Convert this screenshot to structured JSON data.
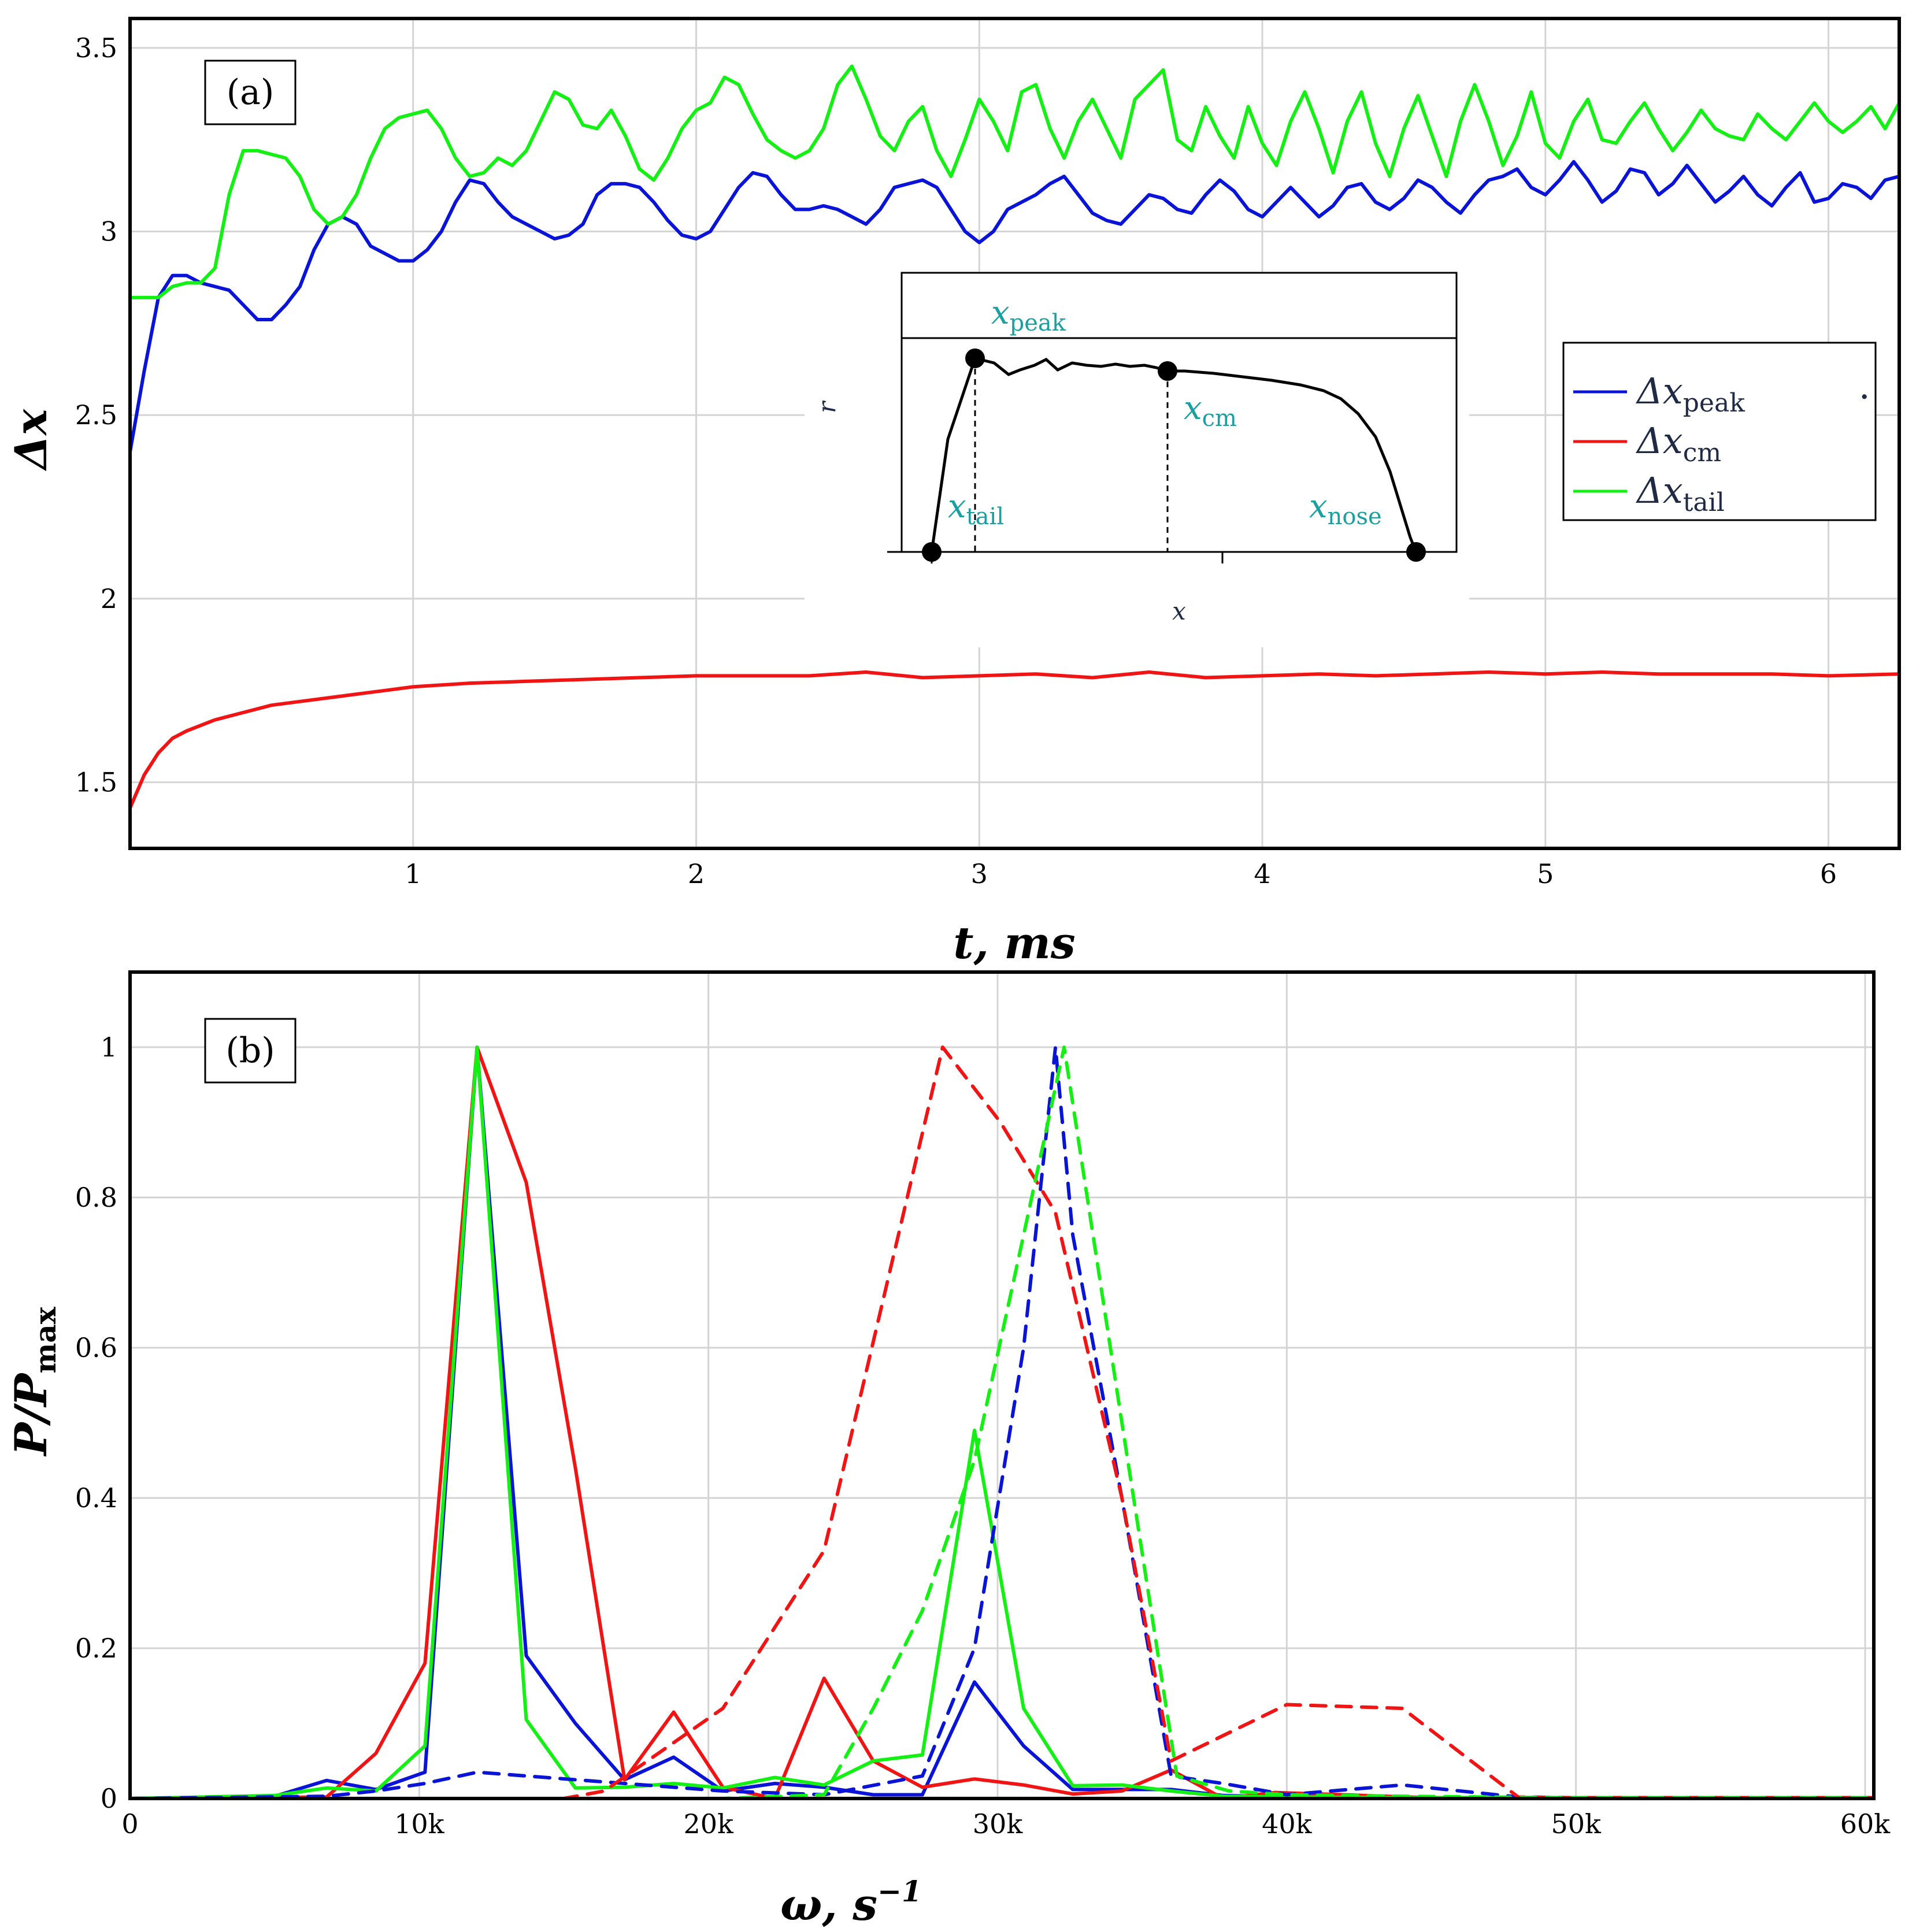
{
  "colors": {
    "peak": "#0a14d6",
    "cm": "#f01414",
    "tail": "#14f014",
    "inset_label": "#1aa0a0"
  },
  "panel_a": {
    "tag": "(a)",
    "xlabel": "t, ms",
    "ylabel": "Δx",
    "x_ticks": [
      "1",
      "2",
      "3",
      "4",
      "5",
      "6"
    ],
    "y_ticks": [
      "1.5",
      "2",
      "2.5",
      "3",
      "3.5"
    ],
    "legend": [
      {
        "symbol": "Δx",
        "sub": "peak",
        "color": "#0a14d6"
      },
      {
        "symbol": "Δx",
        "sub": "cm",
        "color": "#f01414"
      },
      {
        "symbol": "Δx",
        "sub": "tail",
        "color": "#14f014"
      }
    ],
    "legend_dot": ".",
    "inset": {
      "x_axis": "x",
      "y_axis": "r",
      "labels": [
        {
          "sym": "x",
          "sub": "peak"
        },
        {
          "sym": "x",
          "sub": "cm"
        },
        {
          "sym": "x",
          "sub": "tail"
        },
        {
          "sym": "x",
          "sub": "nose"
        }
      ]
    }
  },
  "panel_b": {
    "tag": "(b)",
    "xlabel": "ω,   s",
    "xlabel_sup": "−1",
    "ylabel": "P/P",
    "ylabel_sub": "max",
    "x_ticks": [
      "0",
      "10k",
      "20k",
      "30k",
      "40k",
      "50k",
      "60k"
    ],
    "y_ticks": [
      "0",
      "0.2",
      "0.4",
      "0.6",
      "0.8",
      "1"
    ]
  },
  "chart_data": [
    {
      "type": "line",
      "title": "(a)",
      "xlabel": "t, ms",
      "ylabel": "Δx",
      "xlim": [
        0,
        6.25
      ],
      "ylim": [
        1.32,
        3.58
      ],
      "series": [
        {
          "name": "Δx_peak",
          "color": "#0a14d6",
          "x": [
            0,
            0.05,
            0.1,
            0.15,
            0.2,
            0.25,
            0.3,
            0.35,
            0.4,
            0.45,
            0.5,
            0.55,
            0.6,
            0.65,
            0.7,
            0.75,
            0.8,
            0.85,
            0.9,
            0.95,
            1.0,
            1.05,
            1.1,
            1.15,
            1.2,
            1.25,
            1.3,
            1.35,
            1.4,
            1.45,
            1.5,
            1.55,
            1.6,
            1.65,
            1.7,
            1.75,
            1.8,
            1.85,
            1.9,
            1.95,
            2.0,
            2.05,
            2.1,
            2.15,
            2.2,
            2.25,
            2.3,
            2.35,
            2.4,
            2.45,
            2.5,
            2.55,
            2.6,
            2.65,
            2.7,
            2.75,
            2.8,
            2.85,
            2.9,
            2.95,
            3.0,
            3.05,
            3.1,
            3.15,
            3.2,
            3.25,
            3.3,
            3.35,
            3.4,
            3.45,
            3.5,
            3.55,
            3.6,
            3.65,
            3.7,
            3.75,
            3.8,
            3.85,
            3.9,
            3.95,
            4.0,
            4.05,
            4.1,
            4.15,
            4.2,
            4.25,
            4.3,
            4.35,
            4.4,
            4.45,
            4.5,
            4.55,
            4.6,
            4.65,
            4.7,
            4.75,
            4.8,
            4.85,
            4.9,
            4.95,
            5.0,
            5.05,
            5.1,
            5.15,
            5.2,
            5.25,
            5.3,
            5.35,
            5.4,
            5.45,
            5.5,
            5.55,
            5.6,
            5.65,
            5.7,
            5.75,
            5.8,
            5.85,
            5.9,
            5.95,
            6.0,
            6.05,
            6.1,
            6.15,
            6.2,
            6.25
          ],
          "y": [
            2.4,
            2.62,
            2.82,
            2.88,
            2.88,
            2.86,
            2.85,
            2.84,
            2.8,
            2.76,
            2.76,
            2.8,
            2.85,
            2.95,
            3.02,
            3.04,
            3.02,
            2.96,
            2.94,
            2.92,
            2.92,
            2.95,
            3.0,
            3.08,
            3.14,
            3.13,
            3.08,
            3.04,
            3.02,
            3.0,
            2.98,
            2.99,
            3.02,
            3.1,
            3.13,
            3.13,
            3.12,
            3.08,
            3.03,
            2.99,
            2.98,
            3.0,
            3.06,
            3.12,
            3.16,
            3.15,
            3.1,
            3.06,
            3.06,
            3.07,
            3.06,
            3.04,
            3.02,
            3.06,
            3.12,
            3.13,
            3.14,
            3.12,
            3.06,
            3.0,
            2.97,
            3.0,
            3.06,
            3.08,
            3.1,
            3.13,
            3.15,
            3.1,
            3.05,
            3.03,
            3.02,
            3.06,
            3.1,
            3.09,
            3.06,
            3.05,
            3.1,
            3.14,
            3.11,
            3.06,
            3.04,
            3.08,
            3.12,
            3.08,
            3.04,
            3.07,
            3.12,
            3.13,
            3.08,
            3.06,
            3.09,
            3.14,
            3.12,
            3.08,
            3.05,
            3.1,
            3.14,
            3.15,
            3.17,
            3.12,
            3.1,
            3.14,
            3.19,
            3.14,
            3.08,
            3.11,
            3.17,
            3.16,
            3.1,
            3.13,
            3.18,
            3.13,
            3.08,
            3.11,
            3.15,
            3.1,
            3.07,
            3.12,
            3.16,
            3.08,
            3.09,
            3.13,
            3.12,
            3.09,
            3.14,
            3.15
          ]
        },
        {
          "name": "Δx_cm",
          "color": "#f01414",
          "x": [
            0,
            0.05,
            0.1,
            0.15,
            0.2,
            0.3,
            0.4,
            0.5,
            0.6,
            0.7,
            0.8,
            0.9,
            1.0,
            1.2,
            1.4,
            1.6,
            1.8,
            2.0,
            2.2,
            2.4,
            2.6,
            2.8,
            3.0,
            3.2,
            3.4,
            3.6,
            3.8,
            4.0,
            4.2,
            4.4,
            4.6,
            4.8,
            5.0,
            5.2,
            5.4,
            5.6,
            5.8,
            6.0,
            6.25
          ],
          "y": [
            1.43,
            1.52,
            1.58,
            1.62,
            1.64,
            1.67,
            1.69,
            1.71,
            1.72,
            1.73,
            1.74,
            1.75,
            1.76,
            1.77,
            1.775,
            1.78,
            1.785,
            1.79,
            1.79,
            1.79,
            1.8,
            1.785,
            1.79,
            1.795,
            1.785,
            1.8,
            1.785,
            1.79,
            1.795,
            1.79,
            1.795,
            1.8,
            1.795,
            1.8,
            1.795,
            1.795,
            1.795,
            1.79,
            1.795
          ]
        },
        {
          "name": "Δx_tail",
          "color": "#14f014",
          "x": [
            0,
            0.05,
            0.1,
            0.15,
            0.2,
            0.25,
            0.3,
            0.35,
            0.4,
            0.45,
            0.5,
            0.55,
            0.6,
            0.65,
            0.7,
            0.75,
            0.8,
            0.85,
            0.9,
            0.95,
            1.0,
            1.05,
            1.1,
            1.15,
            1.2,
            1.25,
            1.3,
            1.35,
            1.4,
            1.45,
            1.5,
            1.55,
            1.6,
            1.65,
            1.7,
            1.75,
            1.8,
            1.85,
            1.9,
            1.95,
            2.0,
            2.05,
            2.1,
            2.15,
            2.2,
            2.25,
            2.3,
            2.35,
            2.4,
            2.45,
            2.5,
            2.55,
            2.6,
            2.65,
            2.7,
            2.75,
            2.8,
            2.85,
            2.9,
            2.95,
            3.0,
            3.05,
            3.1,
            3.15,
            3.2,
            3.25,
            3.3,
            3.35,
            3.4,
            3.45,
            3.5,
            3.55,
            3.6,
            3.65,
            3.7,
            3.75,
            3.8,
            3.85,
            3.9,
            3.95,
            4.0,
            4.05,
            4.1,
            4.15,
            4.2,
            4.25,
            4.3,
            4.35,
            4.4,
            4.45,
            4.5,
            4.55,
            4.6,
            4.65,
            4.7,
            4.75,
            4.8,
            4.85,
            4.9,
            4.95,
            5.0,
            5.05,
            5.1,
            5.15,
            5.2,
            5.25,
            5.3,
            5.35,
            5.4,
            5.45,
            5.5,
            5.55,
            5.6,
            5.65,
            5.7,
            5.75,
            5.8,
            5.85,
            5.9,
            5.95,
            6.0,
            6.05,
            6.1,
            6.15,
            6.2,
            6.25
          ],
          "y": [
            2.82,
            2.82,
            2.82,
            2.85,
            2.86,
            2.86,
            2.9,
            3.1,
            3.22,
            3.22,
            3.21,
            3.2,
            3.15,
            3.06,
            3.02,
            3.04,
            3.1,
            3.2,
            3.28,
            3.31,
            3.32,
            3.33,
            3.28,
            3.2,
            3.15,
            3.16,
            3.2,
            3.18,
            3.22,
            3.3,
            3.38,
            3.36,
            3.29,
            3.28,
            3.33,
            3.26,
            3.17,
            3.14,
            3.2,
            3.28,
            3.33,
            3.35,
            3.42,
            3.4,
            3.32,
            3.25,
            3.22,
            3.2,
            3.22,
            3.28,
            3.4,
            3.45,
            3.36,
            3.26,
            3.22,
            3.3,
            3.34,
            3.22,
            3.15,
            3.25,
            3.36,
            3.3,
            3.22,
            3.38,
            3.4,
            3.28,
            3.2,
            3.3,
            3.36,
            3.28,
            3.2,
            3.36,
            3.4,
            3.44,
            3.25,
            3.22,
            3.34,
            3.26,
            3.2,
            3.34,
            3.24,
            3.18,
            3.3,
            3.38,
            3.28,
            3.16,
            3.3,
            3.38,
            3.24,
            3.15,
            3.28,
            3.37,
            3.26,
            3.15,
            3.3,
            3.4,
            3.3,
            3.18,
            3.26,
            3.38,
            3.24,
            3.2,
            3.3,
            3.36,
            3.25,
            3.24,
            3.3,
            3.35,
            3.28,
            3.22,
            3.27,
            3.33,
            3.28,
            3.26,
            3.25,
            3.32,
            3.28,
            3.25,
            3.3,
            3.35,
            3.3,
            3.27,
            3.3,
            3.34,
            3.28,
            3.35
          ]
        }
      ]
    },
    {
      "type": "line",
      "title": "(b)",
      "xlabel": "ω, s^-1",
      "ylabel": "P/P_max",
      "xlim": [
        0,
        60300
      ],
      "ylim": [
        0,
        1.1
      ],
      "series": [
        {
          "name": "peak (solid)",
          "color": "#0a14d6",
          "dash": false,
          "x": [
            0,
            5000,
            6800,
            8500,
            10200,
            12000,
            13700,
            15400,
            17100,
            18800,
            20500,
            22300,
            24000,
            25700,
            27400,
            29200,
            30900,
            32600,
            34300,
            36000,
            37800,
            40000,
            45000,
            50000,
            60300
          ],
          "y": [
            0,
            0.003,
            0.024,
            0.012,
            0.035,
            1.0,
            0.19,
            0.1,
            0.025,
            0.055,
            0.01,
            0.02,
            0.015,
            0.005,
            0.005,
            0.155,
            0.07,
            0.012,
            0.012,
            0.012,
            0.004,
            0.002,
            0.001,
            0.001,
            0.001
          ]
        },
        {
          "name": "cm (solid)",
          "color": "#f01414",
          "dash": false,
          "x": [
            0,
            6800,
            8500,
            10200,
            12000,
            13700,
            15400,
            17100,
            18800,
            20500,
            22300,
            24000,
            25700,
            27400,
            29200,
            30900,
            32600,
            34300,
            36000,
            37800,
            39600,
            45000,
            50000,
            60300
          ],
          "y": [
            0,
            0.002,
            0.06,
            0.18,
            1.0,
            0.82,
            0.44,
            0.025,
            0.115,
            0.015,
            0.0,
            0.16,
            0.05,
            0.015,
            0.026,
            0.018,
            0.006,
            0.01,
            0.038,
            0.0,
            0.008,
            0.001,
            0.001,
            0.001
          ]
        },
        {
          "name": "tail (solid)",
          "color": "#14f014",
          "dash": false,
          "x": [
            0,
            5000,
            6800,
            8500,
            10200,
            12000,
            13700,
            15400,
            17100,
            18800,
            20500,
            22300,
            24000,
            25700,
            27400,
            29200,
            30900,
            32600,
            34300,
            36000,
            37800,
            40000,
            45000,
            50000,
            60300
          ],
          "y": [
            0,
            0.004,
            0.014,
            0.01,
            0.07,
            1.0,
            0.105,
            0.014,
            0.015,
            0.02,
            0.014,
            0.028,
            0.018,
            0.05,
            0.058,
            0.49,
            0.12,
            0.017,
            0.018,
            0.01,
            0.003,
            0.002,
            0.001,
            0.001,
            0.001
          ]
        },
        {
          "name": "peak (dashed)",
          "color": "#0a14d6",
          "dash": true,
          "x": [
            0,
            6800,
            8500,
            10200,
            12000,
            13700,
            17100,
            20500,
            24000,
            27400,
            29200,
            30900,
            32000,
            32600,
            34300,
            36000,
            37800,
            40000,
            44000,
            48000,
            50000,
            60300
          ],
          "y": [
            0,
            0.003,
            0.01,
            0.02,
            0.035,
            0.03,
            0.02,
            0.01,
            0.005,
            0.03,
            0.2,
            0.6,
            1.0,
            0.75,
            0.4,
            0.03,
            0.02,
            0.005,
            0.018,
            0.002,
            0.001,
            0.001
          ]
        },
        {
          "name": "cm (dashed)",
          "color": "#f01414",
          "dash": true,
          "x": [
            0,
            15000,
            16400,
            20500,
            24000,
            28100,
            30100,
            32000,
            34300,
            36000,
            40000,
            44000,
            48000,
            50000,
            60300
          ],
          "y": [
            0,
            0.0,
            0.01,
            0.12,
            0.33,
            1.0,
            0.9,
            0.78,
            0.4,
            0.05,
            0.125,
            0.12,
            0.002,
            0.001,
            0.001
          ]
        },
        {
          "name": "tail (dashed)",
          "color": "#14f014",
          "dash": true,
          "x": [
            0,
            20500,
            24000,
            25700,
            27400,
            29200,
            30900,
            32300,
            34300,
            36200,
            38000,
            40000,
            44000,
            50000,
            60300
          ],
          "y": [
            0,
            0.0,
            0.005,
            0.12,
            0.25,
            0.45,
            0.75,
            1.0,
            0.5,
            0.03,
            0.01,
            0.005,
            0.003,
            0.001,
            0.001
          ]
        }
      ]
    }
  ]
}
